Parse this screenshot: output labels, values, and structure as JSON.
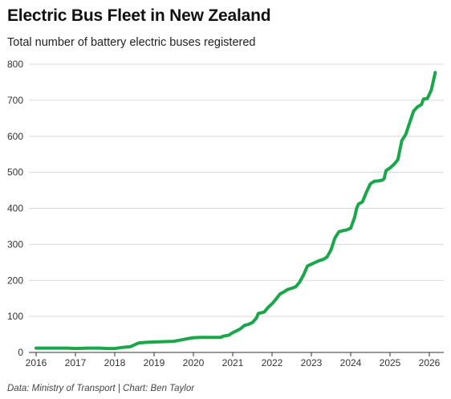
{
  "title": "Electric Bus Fleet in New Zealand",
  "subtitle": "Total number of battery electric buses registered",
  "source": "Data: Ministry of Transport | Chart: Ben Taylor",
  "colors": {
    "line": "#1aa64a",
    "grid": "#d9d9d9",
    "axis": "#333333"
  },
  "chart_data": {
    "type": "line",
    "title": "Electric Bus Fleet in New Zealand",
    "subtitle": "Total number of battery electric buses registered",
    "xlabel": "",
    "ylabel": "",
    "xlim": [
      2016,
      2026.25
    ],
    "ylim": [
      0,
      800
    ],
    "grid": true,
    "legend": "none",
    "x_ticks": [
      2016,
      2017,
      2018,
      2019,
      2020,
      2021,
      2022,
      2023,
      2024,
      2025,
      2026
    ],
    "x_tick_labels": [
      "2016",
      "2017",
      "2018",
      "2019",
      "2020",
      "2021",
      "2022",
      "2023",
      "2024",
      "2025",
      "2026"
    ],
    "y_ticks": [
      0,
      100,
      200,
      300,
      400,
      500,
      600,
      700,
      800
    ],
    "y_tick_labels": [
      "0",
      "100",
      "200",
      "300",
      "400",
      "500",
      "600",
      "700",
      "800"
    ],
    "series": [
      {
        "points": [
          [
            2016.0,
            12
          ],
          [
            2016.5,
            12
          ],
          [
            2016.8,
            12
          ],
          [
            2017.0,
            11
          ],
          [
            2017.3,
            12
          ],
          [
            2017.6,
            12
          ],
          [
            2017.8,
            11
          ],
          [
            2018.0,
            11
          ],
          [
            2018.2,
            14
          ],
          [
            2018.4,
            16
          ],
          [
            2018.5,
            21
          ],
          [
            2018.6,
            26
          ],
          [
            2018.8,
            28
          ],
          [
            2019.0,
            29
          ],
          [
            2019.3,
            30
          ],
          [
            2019.5,
            31
          ],
          [
            2019.7,
            35
          ],
          [
            2019.85,
            38
          ],
          [
            2020.0,
            41
          ],
          [
            2020.2,
            42
          ],
          [
            2020.5,
            42
          ],
          [
            2020.7,
            42
          ],
          [
            2020.75,
            45
          ],
          [
            2020.9,
            48
          ],
          [
            2021.0,
            55
          ],
          [
            2021.1,
            60
          ],
          [
            2021.2,
            66
          ],
          [
            2021.3,
            75
          ],
          [
            2021.4,
            78
          ],
          [
            2021.5,
            83
          ],
          [
            2021.6,
            95
          ],
          [
            2021.65,
            108
          ],
          [
            2021.8,
            112
          ],
          [
            2021.9,
            125
          ],
          [
            2022.0,
            135
          ],
          [
            2022.1,
            148
          ],
          [
            2022.2,
            162
          ],
          [
            2022.3,
            168
          ],
          [
            2022.4,
            175
          ],
          [
            2022.5,
            178
          ],
          [
            2022.6,
            182
          ],
          [
            2022.7,
            195
          ],
          [
            2022.8,
            215
          ],
          [
            2022.9,
            240
          ],
          [
            2023.0,
            245
          ],
          [
            2023.1,
            250
          ],
          [
            2023.2,
            255
          ],
          [
            2023.3,
            258
          ],
          [
            2023.4,
            265
          ],
          [
            2023.5,
            285
          ],
          [
            2023.6,
            318
          ],
          [
            2023.7,
            335
          ],
          [
            2023.8,
            338
          ],
          [
            2023.9,
            340
          ],
          [
            2024.0,
            345
          ],
          [
            2024.1,
            375
          ],
          [
            2024.15,
            400
          ],
          [
            2024.2,
            412
          ],
          [
            2024.3,
            418
          ],
          [
            2024.4,
            445
          ],
          [
            2024.5,
            468
          ],
          [
            2024.6,
            475
          ],
          [
            2024.7,
            476
          ],
          [
            2024.8,
            478
          ],
          [
            2024.85,
            482
          ],
          [
            2024.9,
            505
          ],
          [
            2025.0,
            512
          ],
          [
            2025.1,
            522
          ],
          [
            2025.2,
            535
          ],
          [
            2025.3,
            588
          ],
          [
            2025.4,
            605
          ],
          [
            2025.5,
            638
          ],
          [
            2025.6,
            670
          ],
          [
            2025.7,
            682
          ],
          [
            2025.8,
            688
          ],
          [
            2025.85,
            703
          ],
          [
            2025.95,
            705
          ],
          [
            2026.05,
            728
          ],
          [
            2026.15,
            777
          ]
        ]
      }
    ]
  }
}
